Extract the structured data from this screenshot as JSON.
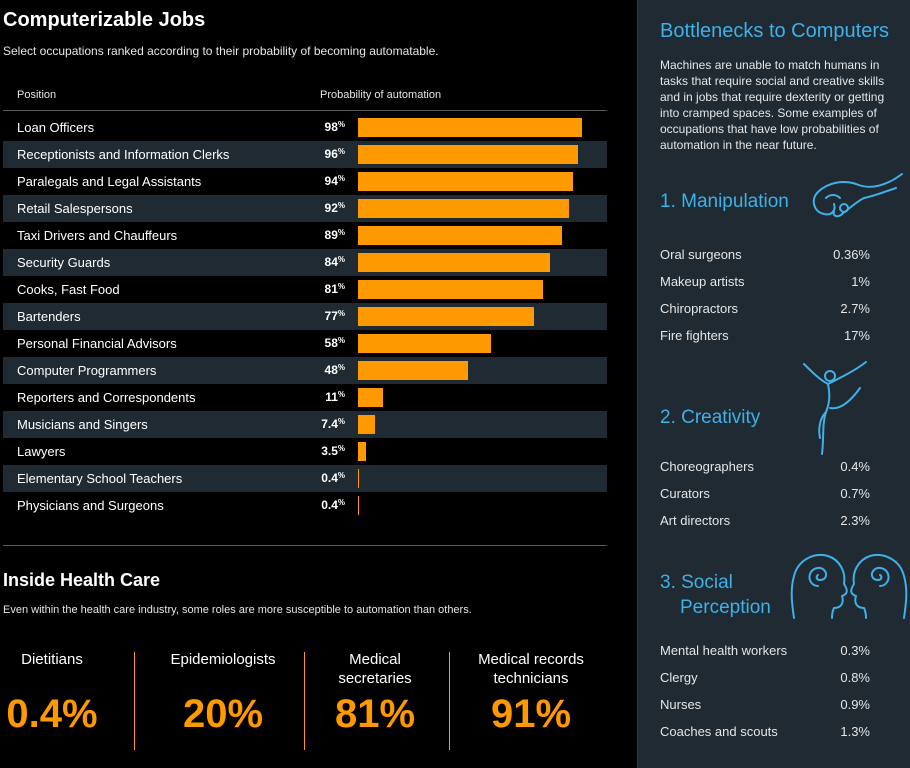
{
  "title": "Computerizable Jobs",
  "subtitle": "Select occupations ranked according to their probability of becoming automatable.",
  "col_position": "Position",
  "col_probability": "Probability of automation",
  "chart_data": {
    "type": "bar",
    "title": "Computerizable Jobs",
    "xlabel": "Probability of automation",
    "ylabel": "Position",
    "xlim": [
      0,
      100
    ],
    "categories": [
      "Loan Officers",
      "Receptionists and Information Clerks",
      "Paralegals and Legal Assistants",
      "Retail Salespersons",
      "Taxi Drivers and Chauffeurs",
      "Security Guards",
      "Cooks, Fast Food",
      "Bartenders",
      "Personal Financial Advisors",
      "Computer Programmers",
      "Reporters and Correspondents",
      "Musicians and Singers",
      "Lawyers",
      "Elementary School Teachers",
      "Physicians and Surgeons"
    ],
    "values": [
      98,
      96,
      94,
      92,
      89,
      84,
      81,
      77,
      58,
      48,
      11,
      7.4,
      3.5,
      0.4,
      0.4
    ],
    "value_labels": [
      "98",
      "96",
      "94",
      "92",
      "89",
      "84",
      "81",
      "77",
      "58",
      "48",
      "11",
      "7.4",
      "3.5",
      "0.4",
      "0.4"
    ],
    "unit": "%",
    "bar_color": "#ff9900"
  },
  "health": {
    "title": "Inside Health Care",
    "subtitle": "Even within the health care industry, some roles are more susceptible to automation than others.",
    "items": [
      {
        "label": "Dietitians",
        "value": "0.4%"
      },
      {
        "label": "Epidemiologists",
        "value": "20%"
      },
      {
        "label": "Medical secretaries",
        "value": "81%"
      },
      {
        "label": "Medical records technicians",
        "value": "91%"
      }
    ]
  },
  "bottlenecks": {
    "title": "Bottlenecks to Computers",
    "description": "Machines are unable to match humans in tasks that require social and creative skills and in jobs that require dexterity or getting into cramped spaces. Some examples of occupations that have low probabilities of automation in the near future.",
    "accent": "#3fb0e8",
    "categories": [
      {
        "title": "1. Manipulation",
        "icon": "hand-icon",
        "items": [
          {
            "label": "Oral surgeons",
            "value": "0.36%"
          },
          {
            "label": "Makeup artists",
            "value": "1%"
          },
          {
            "label": "Chiropractors",
            "value": "2.7%"
          },
          {
            "label": "Fire fighters",
            "value": "17%"
          }
        ]
      },
      {
        "title": "2. Creativity",
        "icon": "dancer-icon",
        "items": [
          {
            "label": "Choreographers",
            "value": "0.4%"
          },
          {
            "label": "Curators",
            "value": "0.7%"
          },
          {
            "label": "Art directors",
            "value": "2.3%"
          }
        ]
      },
      {
        "title_line1": "3. Social",
        "title_line2": "Perception",
        "icon": "heads-icon",
        "items": [
          {
            "label": "Mental health workers",
            "value": "0.3%"
          },
          {
            "label": "Clergy",
            "value": "0.8%"
          },
          {
            "label": "Nurses",
            "value": "0.9%"
          },
          {
            "label": "Coaches and scouts",
            "value": "1.3%"
          }
        ]
      }
    ]
  }
}
